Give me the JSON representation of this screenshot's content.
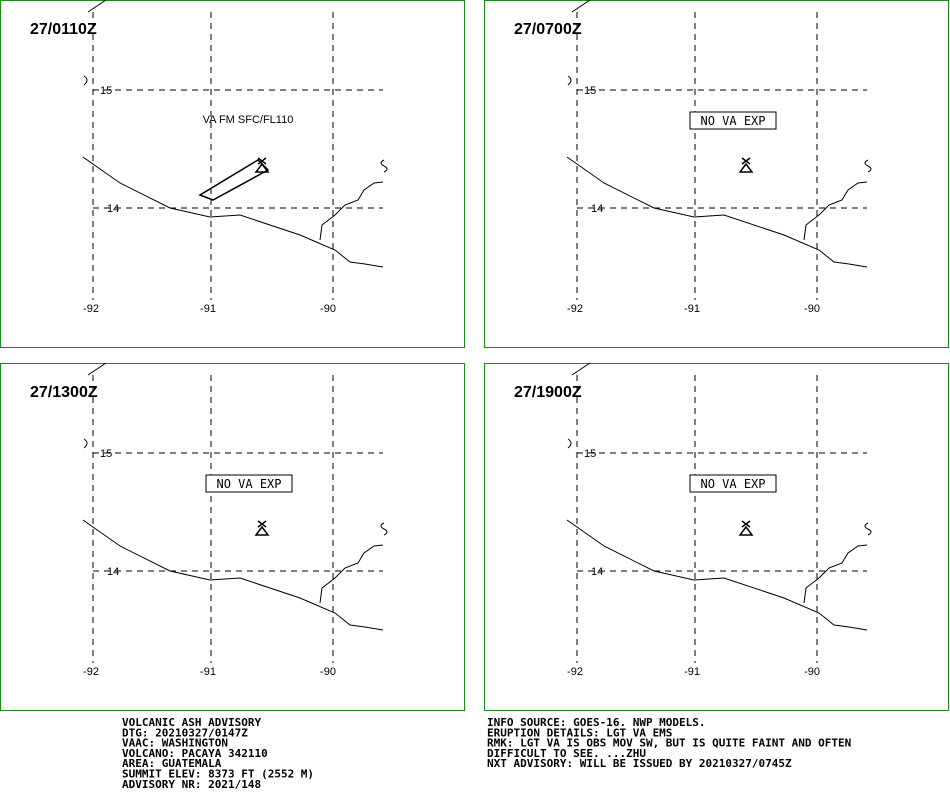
{
  "panels": [
    {
      "title": "27/0110Z",
      "label": "VA FM SFC/FL110"
    },
    {
      "title": "27/0700Z",
      "label": "NO VA EXP"
    },
    {
      "title": "27/1300Z",
      "label": "NO VA EXP"
    },
    {
      "title": "27/1900Z",
      "label": "NO VA EXP"
    }
  ],
  "grid": {
    "lat": [
      "15",
      "14"
    ],
    "lon": [
      "-92",
      "-91",
      "-90"
    ]
  },
  "advisory": {
    "left": [
      "VOLCANIC ASH ADVISORY",
      "DTG: 20210327/0147Z",
      "VAAC: WASHINGTON",
      "VOLCANO: PACAYA 342110",
      "AREA: GUATEMALA",
      "SUMMIT ELEV: 8373 FT (2552 M)",
      "ADVISORY NR: 2021/148"
    ],
    "right": [
      "INFO SOURCE: GOES-16. NWP MODELS.",
      "ERUPTION DETAILS: LGT VA EMS",
      "RMK: LGT VA IS OBS MOV SW, BUT IS QUITE FAINT AND OFTEN",
      "DIFFICULT TO SEE. ...ZHU",
      "NXT ADVISORY: WILL BE ISSUED BY 20210327/0745Z"
    ]
  }
}
